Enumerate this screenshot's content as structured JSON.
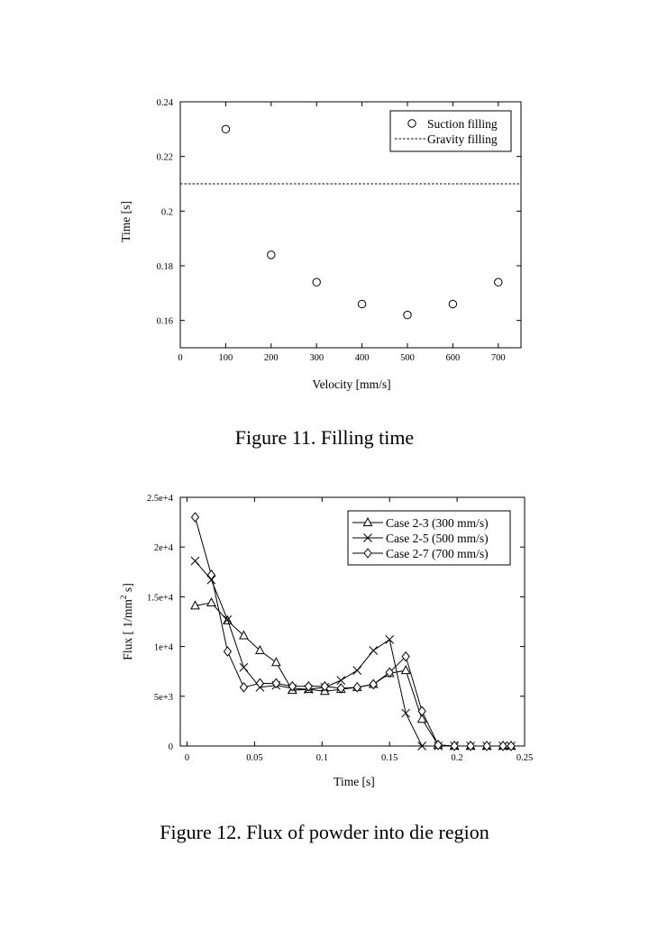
{
  "chart_data": [
    {
      "type": "scatter",
      "xlabel": "Velocity [mm/s]",
      "ylabel": "Time [s]",
      "xlim": [
        0,
        750
      ],
      "ylim": [
        0.15,
        0.24
      ],
      "xticks": [
        "0",
        "100",
        "200",
        "300",
        "400",
        "500",
        "600",
        "700"
      ],
      "yticks": [
        "0.16",
        "0.18",
        "0.2",
        "0.22",
        "0.24"
      ],
      "legend_position": "top-right",
      "series": [
        {
          "name": "Suction filling",
          "marker": "circle",
          "x": [
            100,
            200,
            300,
            400,
            500,
            600,
            700
          ],
          "y": [
            0.23,
            0.184,
            0.174,
            0.166,
            0.162,
            0.166,
            0.174
          ]
        },
        {
          "name": "Gravity filling",
          "style": "dashed-horizontal",
          "y": 0.21
        }
      ]
    },
    {
      "type": "line",
      "xlabel": "Time [s]",
      "ylabel_prefix": "Flux [ 1/mm",
      "ylabel_sup": "2",
      "ylabel_suffix": " s]",
      "xlim": [
        -0.005,
        0.25
      ],
      "ylim": [
        0,
        25000
      ],
      "xticks": [
        "0",
        "0.05",
        "0.1",
        "0.15",
        "0.2",
        "0.25"
      ],
      "yticks": [
        "0",
        "5e+3",
        "1e+4",
        "1.5e+4",
        "2e+4",
        "2.5e+4"
      ],
      "legend_position": "top-right",
      "series": [
        {
          "name": "Case 2-3 (300 mm/s)",
          "marker": "triangle",
          "x": [
            0.006,
            0.018,
            0.03,
            0.042,
            0.054,
            0.066,
            0.078,
            0.09,
            0.102,
            0.114,
            0.126,
            0.138,
            0.15,
            0.162,
            0.174,
            0.186,
            0.198,
            0.21,
            0.222,
            0.234,
            0.24
          ],
          "y": [
            14100,
            14400,
            12600,
            11100,
            9600,
            8400,
            5600,
            5700,
            5500,
            5700,
            5900,
            6200,
            7300,
            7600,
            2700,
            100,
            0,
            0,
            0,
            0,
            0
          ]
        },
        {
          "name": "Case 2-5 (500 mm/s)",
          "marker": "x",
          "x": [
            0.006,
            0.018,
            0.03,
            0.042,
            0.054,
            0.066,
            0.078,
            0.09,
            0.102,
            0.114,
            0.126,
            0.138,
            0.15,
            0.162,
            0.174,
            0.186,
            0.198,
            0.21,
            0.222,
            0.234,
            0.24
          ],
          "y": [
            18600,
            16700,
            12700,
            7900,
            5900,
            6100,
            5800,
            5700,
            5900,
            6600,
            7600,
            9600,
            10700,
            3300,
            0,
            0,
            0,
            0,
            0,
            0,
            0
          ]
        },
        {
          "name": "Case 2-7 (700 mm/s)",
          "marker": "diamond",
          "x": [
            0.006,
            0.018,
            0.03,
            0.042,
            0.054,
            0.066,
            0.078,
            0.09,
            0.102,
            0.114,
            0.126,
            0.138,
            0.15,
            0.162,
            0.174,
            0.186,
            0.198,
            0.21,
            0.222,
            0.234,
            0.24
          ],
          "y": [
            23000,
            17200,
            9500,
            5900,
            6300,
            6300,
            6000,
            6000,
            6000,
            5800,
            5900,
            6200,
            7400,
            9000,
            3500,
            100,
            0,
            0,
            0,
            0,
            0
          ]
        }
      ]
    }
  ],
  "captions": {
    "fig11": "Figure 11. Filling time",
    "fig12": "Figure 12. Flux of powder into die region"
  }
}
